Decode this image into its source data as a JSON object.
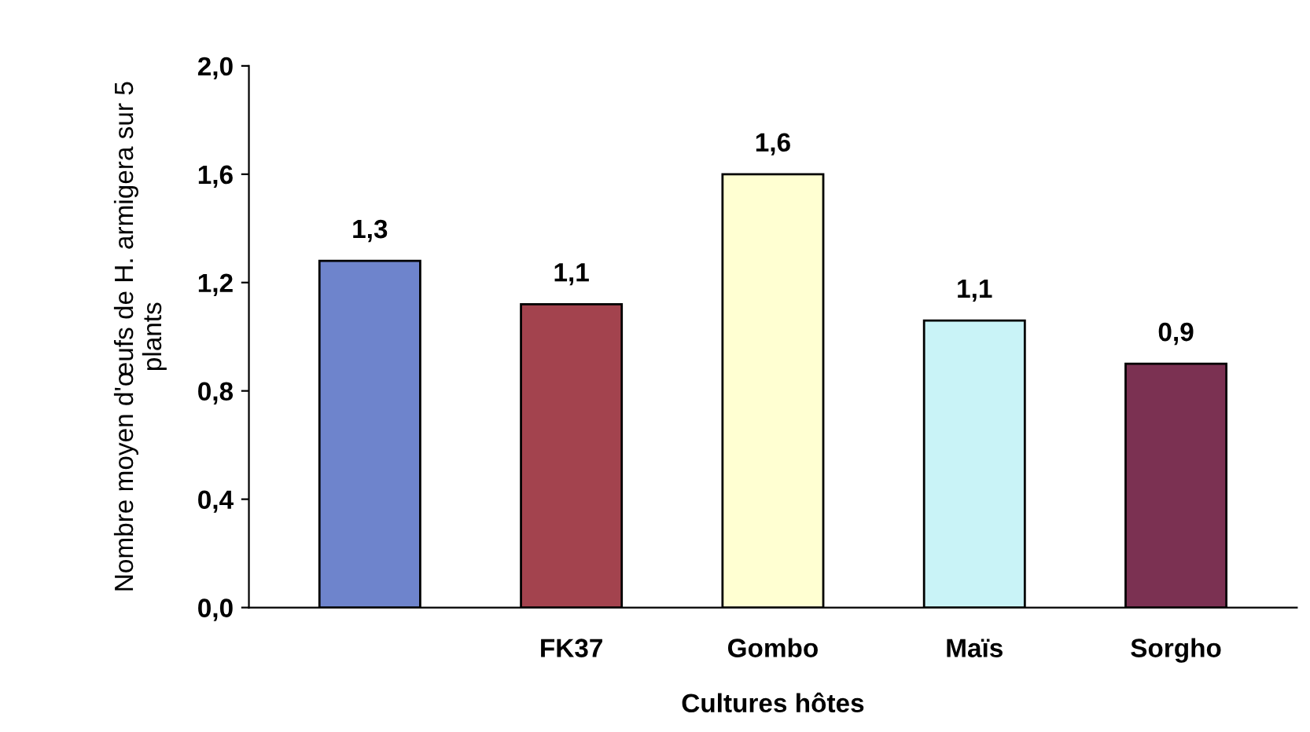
{
  "chart_data": {
    "type": "bar",
    "xlabel": "Cultures hôtes",
    "ylabel": "Nombre moyen d'œufs de H. armigera sur 5 plants",
    "categories": [
      null,
      "FK37",
      "Gombo",
      "Maïs",
      "Sorgho"
    ],
    "values": [
      1.28,
      1.12,
      1.6,
      1.06,
      0.9
    ],
    "value_labels": [
      "1,3",
      "1,1",
      "1,6",
      "1,1",
      "0,9"
    ],
    "colors": [
      "#6e84cc",
      "#a3434e",
      "#ffffd2",
      "#c9f3f7",
      "#7b3152"
    ],
    "ylim": [
      0,
      2
    ],
    "yticks": [
      {
        "value": 0,
        "label": "0,0"
      },
      {
        "value": 0.4,
        "label": "0,4"
      },
      {
        "value": 0.8,
        "label": "0,8"
      },
      {
        "value": 1.2,
        "label": "1,2"
      },
      {
        "value": 1.6,
        "label": "1,6"
      },
      {
        "value": 2.0,
        "label": "2,0"
      }
    ],
    "grid": false,
    "legend": false
  }
}
